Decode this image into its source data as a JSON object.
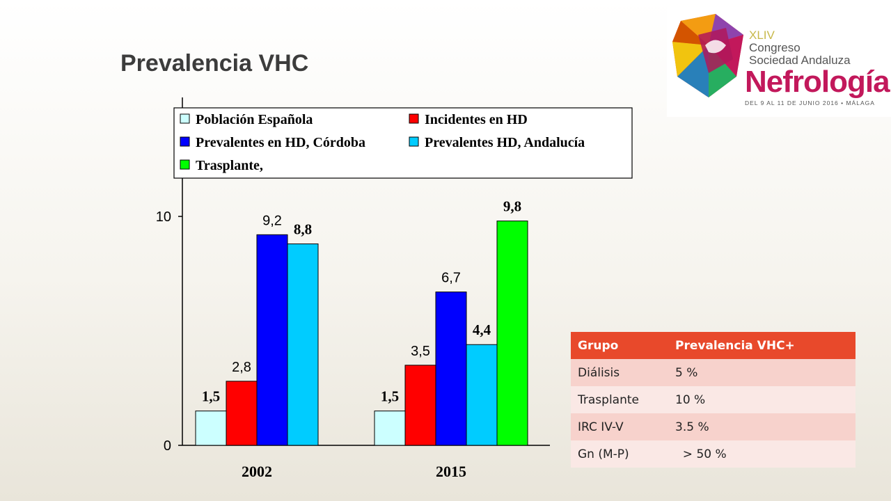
{
  "slide": {
    "title": "Prevalencia VHC"
  },
  "logo": {
    "edition": "XLIV",
    "line1": "Congreso",
    "line2": "Sociedad Andaluza",
    "main": "Nefrología",
    "dates": "DEL 9 AL 11 DE JUNIO 2016 • MÁLAGA"
  },
  "chart_data": {
    "type": "bar",
    "categories": [
      "2002",
      "2015"
    ],
    "series": [
      {
        "name": "Población Española",
        "color": "#ccffff",
        "values": [
          1.5,
          1.5
        ],
        "labels": [
          "1,5",
          "1,5"
        ],
        "label_style": [
          "serif-bold",
          "serif-bold"
        ]
      },
      {
        "name": "Incidentes en HD",
        "color": "#ff0000",
        "values": [
          2.8,
          3.5
        ],
        "labels": [
          "2,8",
          "3,5"
        ],
        "label_style": [
          "sans",
          "sans"
        ]
      },
      {
        "name": "Prevalentes en HD, Córdoba",
        "color": "#0000ff",
        "values": [
          9.2,
          6.7
        ],
        "labels": [
          "9,2",
          "6,7"
        ],
        "label_style": [
          "sans",
          "sans"
        ]
      },
      {
        "name": "Prevalentes HD, Andalucía",
        "color": "#00ccff",
        "values": [
          8.8,
          4.4
        ],
        "labels": [
          "8,8",
          "4,4"
        ],
        "label_style": [
          "serif-bold",
          "serif-bold"
        ]
      },
      {
        "name": "Trasplante,",
        "color": "#00ff00",
        "values": [
          null,
          9.8
        ],
        "labels": [
          null,
          "9,8"
        ],
        "label_style": [
          null,
          "serif-bold"
        ]
      }
    ],
    "yticks": [
      0,
      10
    ],
    "ylim": [
      0,
      10
    ],
    "legend": "top"
  },
  "table": {
    "headers": [
      "Grupo",
      "Prevalencia VHC+"
    ],
    "rows": [
      [
        "Diálisis",
        "5 %"
      ],
      [
        "Trasplante",
        "10 %"
      ],
      [
        "IRC IV-V",
        "3.5 %"
      ],
      [
        "Gn (M-P)",
        "  > 50 %"
      ]
    ]
  }
}
